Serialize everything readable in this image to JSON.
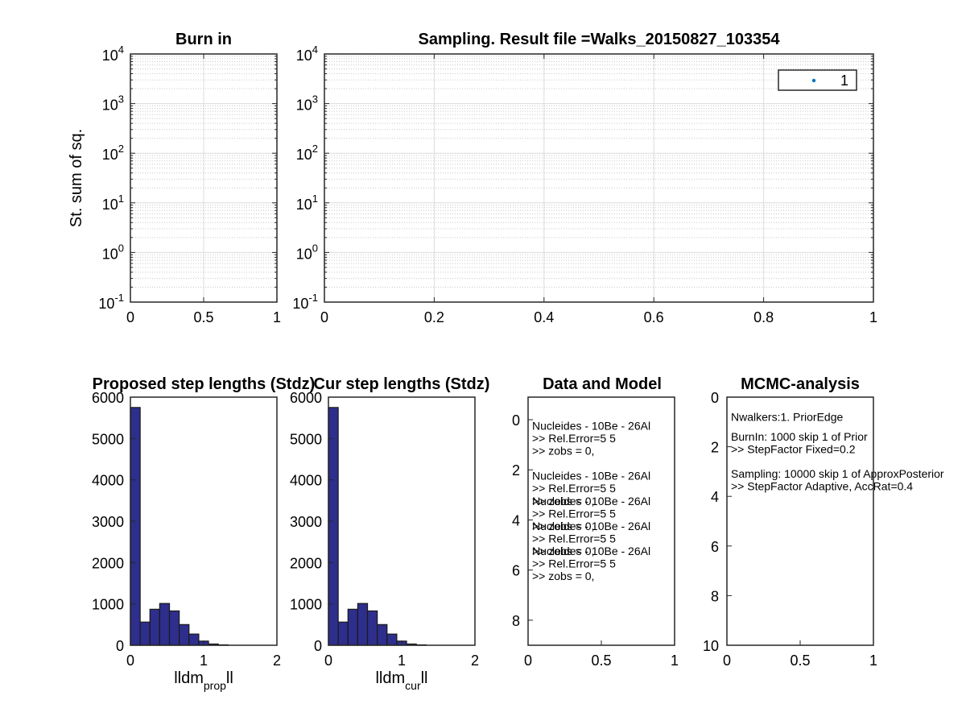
{
  "chart_data": [
    {
      "id": "burnin",
      "type": "line",
      "title": "Burn in",
      "ylabel": "St. sum of sq.",
      "yscale": "log",
      "xlim": [
        0,
        1
      ],
      "ylim": [
        0.1,
        10000
      ],
      "xticks": [
        "0",
        "0.5",
        "1"
      ],
      "ytick_base": "10",
      "ytick_exponents": [
        "-1",
        "0",
        "1",
        "2",
        "3",
        "4"
      ],
      "grid": true,
      "series": []
    },
    {
      "id": "sampling",
      "type": "line",
      "title": "Sampling. Result file =Walks_20150827_103354",
      "yscale": "log",
      "xlim": [
        0,
        1
      ],
      "ylim": [
        0.1,
        10000
      ],
      "xticks": [
        "0",
        "0.2",
        "0.4",
        "0.6",
        "0.8",
        "1"
      ],
      "ytick_base": "10",
      "ytick_exponents": [
        "-1",
        "0",
        "1",
        "2",
        "3",
        "4"
      ],
      "grid": true,
      "legend": {
        "placement": "top-right",
        "entries": [
          "1"
        ],
        "color": "#0072bd"
      },
      "series": []
    },
    {
      "id": "proposed",
      "type": "bar",
      "title": "Proposed step lengths (Stdz)",
      "xlabel_main": "lldm",
      "xlabel_sub": "prop",
      "xlabel_end": "ll",
      "xlim": [
        0,
        2
      ],
      "ylim": [
        0,
        6000
      ],
      "xticks": [
        "0",
        "1",
        "2"
      ],
      "yticks": [
        "0",
        "1000",
        "2000",
        "3000",
        "4000",
        "5000",
        "6000"
      ],
      "bin_width": 0.1333,
      "bin_start": 0,
      "values": [
        5750,
        560,
        870,
        1010,
        830,
        500,
        270,
        100,
        30,
        10
      ],
      "color": "#2e2e8c"
    },
    {
      "id": "current",
      "type": "bar",
      "title": "Cur step lengths (Stdz)",
      "xlabel_main": "lldm",
      "xlabel_sub": "cur",
      "xlabel_end": "ll",
      "xlim": [
        0,
        2
      ],
      "ylim": [
        0,
        6000
      ],
      "xticks": [
        "0",
        "1",
        "2"
      ],
      "yticks": [
        "0",
        "1000",
        "2000",
        "3000",
        "4000",
        "5000",
        "6000"
      ],
      "bin_width": 0.1333,
      "bin_start": 0,
      "values": [
        5750,
        560,
        870,
        1010,
        830,
        500,
        270,
        100,
        30,
        10
      ],
      "color": "#2e2e8c"
    },
    {
      "id": "datamodel",
      "type": "table",
      "title": "Data and Model",
      "xlim": [
        0,
        1
      ],
      "ylim": [
        -0.9,
        9
      ],
      "yreversed": true,
      "xticks": [
        "0",
        "0.5",
        "1"
      ],
      "yticks": [
        "0",
        "2",
        "4",
        "6",
        "8"
      ],
      "lines": [
        {
          "t": "Nucleides - 10Be - 26Al",
          "y": 0.4
        },
        {
          "t": ">>    Rel.Error=5  5",
          "y": 0.9
        },
        {
          "t": ">>    zobs = 0,",
          "y": 1.4
        },
        {
          "t": "Nucleides - 10Be - 26Al",
          "y": 2.4
        },
        {
          "t": ">>    Rel.Error=5  5",
          "y": 2.9
        },
        {
          "t": ">>    zobs = 0,",
          "y": 3.4
        },
        {
          "t": "Nucleides - 10Be - 26Al",
          "y": 3.4
        },
        {
          "t": ">>    Rel.Error=5  5",
          "y": 3.9
        },
        {
          "t": ">>    zobs = 0,",
          "y": 4.4
        },
        {
          "t": "Nucleides - 10Be - 26Al",
          "y": 4.4
        },
        {
          "t": ">>    Rel.Error=5  5",
          "y": 4.9
        },
        {
          "t": ">>    zobs = 0,",
          "y": 5.4
        },
        {
          "t": "Nucleides - 10Be - 26Al",
          "y": 5.4
        },
        {
          "t": ">>    Rel.Error=5  5",
          "y": 5.9
        },
        {
          "t": ">>    zobs = 0,",
          "y": 6.4
        }
      ]
    },
    {
      "id": "mcmc",
      "type": "table",
      "title": "MCMC-analysis",
      "xlim": [
        0,
        1
      ],
      "ylim": [
        0,
        10
      ],
      "yreversed": true,
      "xticks": [
        "0",
        "0.5",
        "1"
      ],
      "yticks": [
        "0",
        "2",
        "4",
        "6",
        "8",
        "10"
      ],
      "lines": [
        {
          "t": "Nwalkers:1. PriorEdge",
          "y": 0.95
        },
        {
          "t": "BurnIn: 1000 skip 1 of Prior",
          "y": 1.75
        },
        {
          "t": ">>    StepFactor Fixed=0.2",
          "y": 2.25
        },
        {
          "t": "Sampling: 10000 skip 1 of ApproxPosterior",
          "y": 3.25
        },
        {
          "t": ">>    StepFactor Adaptive, AccRat=0.4",
          "y": 3.75
        }
      ]
    }
  ]
}
